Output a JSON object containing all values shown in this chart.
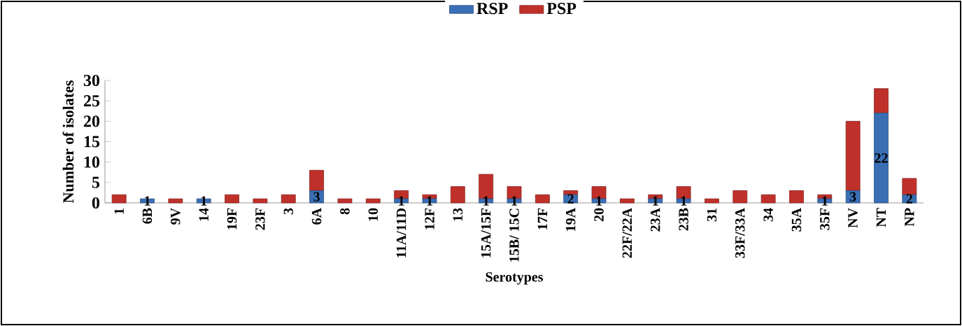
{
  "chart_data": {
    "type": "bar",
    "stacked": true,
    "xlabel": "Serotypes",
    "ylabel": "Number of isolates",
    "categories": [
      "1",
      "6B",
      "9V",
      "14",
      "19F",
      "23F",
      "3",
      "6A",
      "8",
      "10",
      "11A/11D",
      "12F",
      "13",
      "15A/15F",
      "15B/ 15C",
      "17F",
      "19A",
      "20",
      "22F/22A",
      "23A",
      "23B",
      "31",
      "33F/33A",
      "34",
      "35A",
      "35F",
      "NV",
      "NT",
      "NP"
    ],
    "series": [
      {
        "name": "RSP",
        "color": "#3a6fb5",
        "values": [
          0,
          1,
          0,
          1,
          0,
          0,
          0,
          3,
          0,
          0,
          1,
          1,
          0,
          1,
          1,
          0,
          2,
          1,
          0,
          1,
          1,
          0,
          0,
          0,
          0,
          1,
          3,
          22,
          2
        ],
        "value_labels": [
          null,
          "1",
          null,
          "1",
          null,
          null,
          null,
          "3",
          null,
          null,
          "1",
          "1",
          null,
          "1",
          "1",
          null,
          "2",
          "1",
          null,
          "1",
          "1",
          null,
          null,
          null,
          null,
          "1",
          "3",
          "22",
          "2"
        ]
      },
      {
        "name": "PSP",
        "color": "#c0302a",
        "values": [
          2,
          0,
          1,
          0,
          2,
          1,
          2,
          5,
          1,
          1,
          2,
          1,
          4,
          6,
          3,
          2,
          1,
          3,
          1,
          1,
          3,
          1,
          3,
          2,
          3,
          1,
          17,
          6,
          4
        ]
      }
    ],
    "ylim": [
      0,
      30
    ],
    "yticks": [
      0,
      5,
      10,
      15,
      20,
      25,
      30
    ],
    "grid": false,
    "legend": "top"
  }
}
